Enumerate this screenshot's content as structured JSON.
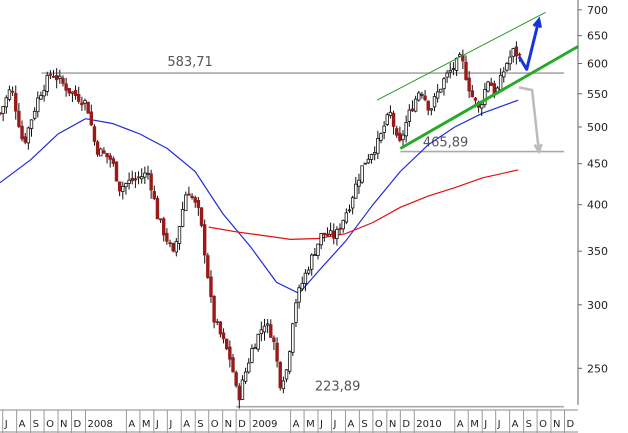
{
  "chart_data": {
    "type": "candlestick",
    "title": "",
    "y_scale": "log",
    "ylim": [
      225,
      720
    ],
    "y_ticks": [
      250,
      300,
      350,
      400,
      450,
      500,
      550,
      600,
      650,
      700
    ],
    "x_range": [
      "2007-06-25",
      "2010-12-31"
    ],
    "x_tick_labels": [
      {
        "label": "J",
        "date": "2007-07-01"
      },
      {
        "label": "A",
        "date": "2007-08-01"
      },
      {
        "label": "S",
        "date": "2007-09-01"
      },
      {
        "label": "O",
        "date": "2007-10-01"
      },
      {
        "label": "N",
        "date": "2007-11-01"
      },
      {
        "label": "D",
        "date": "2007-12-01"
      },
      {
        "label": "2008",
        "date": "2008-01-01"
      },
      {
        "label": "A",
        "date": "2008-04-01"
      },
      {
        "label": "M",
        "date": "2008-05-01"
      },
      {
        "label": "J",
        "date": "2008-06-01"
      },
      {
        "label": "J",
        "date": "2008-07-01"
      },
      {
        "label": "A",
        "date": "2008-08-01"
      },
      {
        "label": "S",
        "date": "2008-09-01"
      },
      {
        "label": "O",
        "date": "2008-10-01"
      },
      {
        "label": "N",
        "date": "2008-11-01"
      },
      {
        "label": "D",
        "date": "2008-12-01"
      },
      {
        "label": "2009",
        "date": "2009-01-01"
      },
      {
        "label": "A",
        "date": "2009-04-01"
      },
      {
        "label": "M",
        "date": "2009-05-01"
      },
      {
        "label": "J",
        "date": "2009-06-01"
      },
      {
        "label": "J",
        "date": "2009-07-01"
      },
      {
        "label": "A",
        "date": "2009-08-01"
      },
      {
        "label": "S",
        "date": "2009-09-01"
      },
      {
        "label": "O",
        "date": "2009-10-01"
      },
      {
        "label": "N",
        "date": "2009-11-01"
      },
      {
        "label": "D",
        "date": "2009-12-01"
      },
      {
        "label": "2010",
        "date": "2010-01-01"
      },
      {
        "label": "A",
        "date": "2010-04-01"
      },
      {
        "label": "M",
        "date": "2010-05-01"
      },
      {
        "label": "J",
        "date": "2010-06-01"
      },
      {
        "label": "J",
        "date": "2010-07-01"
      },
      {
        "label": "A",
        "date": "2010-08-01"
      },
      {
        "label": "S",
        "date": "2010-09-01"
      },
      {
        "label": "O",
        "date": "2010-10-01"
      },
      {
        "label": "N",
        "date": "2010-11-01"
      },
      {
        "label": "D",
        "date": "2010-12-01"
      }
    ],
    "price_path": [
      [
        "2007-06-25",
        520
      ],
      [
        "2007-07-20",
        560
      ],
      [
        "2007-08-16",
        475
      ],
      [
        "2007-09-20",
        548
      ],
      [
        "2007-10-18",
        585
      ],
      [
        "2007-11-26",
        555
      ],
      [
        "2008-01-04",
        535
      ],
      [
        "2008-01-24",
        470
      ],
      [
        "2008-02-28",
        455
      ],
      [
        "2008-03-17",
        420
      ],
      [
        "2008-04-10",
        428
      ],
      [
        "2008-05-20",
        438
      ],
      [
        "2008-06-10",
        385
      ],
      [
        "2008-07-15",
        345
      ],
      [
        "2008-08-14",
        420
      ],
      [
        "2008-09-10",
        390
      ],
      [
        "2008-10-10",
        290
      ],
      [
        "2008-11-20",
        255
      ],
      [
        "2008-12-05",
        228
      ],
      [
        "2009-01-06",
        265
      ],
      [
        "2009-02-02",
        285
      ],
      [
        "2009-02-20",
        275
      ],
      [
        "2009-03-09",
        240
      ],
      [
        "2009-03-25",
        250
      ],
      [
        "2009-04-10",
        300
      ],
      [
        "2009-05-15",
        340
      ],
      [
        "2009-06-10",
        368
      ],
      [
        "2009-07-10",
        365
      ],
      [
        "2009-08-10",
        400
      ],
      [
        "2009-09-10",
        450
      ],
      [
        "2009-10-15",
        480
      ],
      [
        "2009-10-28",
        505
      ],
      [
        "2009-11-10",
        520
      ],
      [
        "2009-11-27",
        470
      ],
      [
        "2009-12-20",
        518
      ],
      [
        "2010-01-15",
        560
      ],
      [
        "2010-02-05",
        525
      ],
      [
        "2010-03-10",
        575
      ],
      [
        "2010-04-15",
        610
      ],
      [
        "2010-05-07",
        550
      ],
      [
        "2010-05-25",
        525
      ],
      [
        "2010-06-15",
        575
      ],
      [
        "2010-07-01",
        548
      ],
      [
        "2010-07-25",
        600
      ],
      [
        "2010-08-10",
        622
      ],
      [
        "2010-08-25",
        610
      ]
    ],
    "series": [
      {
        "type": "line",
        "color": "#1f2bd6",
        "points": [
          [
            "2007-06-25",
            426
          ],
          [
            "2007-09-01",
            455
          ],
          [
            "2007-11-01",
            490
          ],
          [
            "2008-01-01",
            512
          ],
          [
            "2008-03-01",
            505
          ],
          [
            "2008-05-01",
            490
          ],
          [
            "2008-07-01",
            470
          ],
          [
            "2008-09-01",
            440
          ],
          [
            "2008-11-01",
            390
          ],
          [
            "2009-01-01",
            355
          ],
          [
            "2009-03-01",
            320
          ],
          [
            "2009-04-20",
            310
          ],
          [
            "2009-06-01",
            330
          ],
          [
            "2009-08-01",
            360
          ],
          [
            "2009-10-01",
            400
          ],
          [
            "2009-12-01",
            440
          ],
          [
            "2010-02-01",
            475
          ],
          [
            "2010-04-01",
            500
          ],
          [
            "2010-06-01",
            520
          ],
          [
            "2010-08-20",
            540
          ]
        ]
      },
      {
        "type": "line",
        "color": "#dd1111",
        "points": [
          [
            "2008-10-01",
            375
          ],
          [
            "2008-12-01",
            370
          ],
          [
            "2009-02-01",
            366
          ],
          [
            "2009-04-01",
            362
          ],
          [
            "2009-06-01",
            363
          ],
          [
            "2009-08-01",
            368
          ],
          [
            "2009-10-01",
            380
          ],
          [
            "2009-12-01",
            397
          ],
          [
            "2010-02-01",
            410
          ],
          [
            "2010-04-01",
            420
          ],
          [
            "2010-06-01",
            432
          ],
          [
            "2010-08-20",
            442
          ]
        ]
      }
    ],
    "levels": [
      {
        "label": "583,71",
        "value": 583.71,
        "color": "#aaaaaa",
        "from": "2007-09-25",
        "to": "2010-11-30"
      },
      {
        "label": "465,89",
        "value": 465.89,
        "color": "#aaaaaa",
        "from": "2009-12-01",
        "to": "2010-11-30"
      },
      {
        "label": "223,89",
        "value": 223.89,
        "color": "#aaaaaa",
        "from": "2008-12-01",
        "to": "2010-11-30"
      }
    ],
    "channel": [
      {
        "color": "#2a9a2a",
        "width": 1,
        "points": [
          [
            "2009-10-10",
            540
          ],
          [
            "2010-10-20",
            695
          ]
        ]
      },
      {
        "color": "#2aa82a",
        "width": 3,
        "points": [
          [
            "2009-12-01",
            470
          ],
          [
            "2010-12-31",
            630
          ]
        ]
      }
    ],
    "scenarios": [
      {
        "color": "#1634dd",
        "points": [
          [
            "2010-08-22",
            612
          ],
          [
            "2010-09-08",
            590
          ],
          [
            "2010-10-05",
            680
          ]
        ]
      },
      {
        "color": "#bbbbbb",
        "points": [
          [
            "2010-08-22",
            560
          ],
          [
            "2010-09-20",
            556
          ],
          [
            "2010-10-05",
            466
          ]
        ]
      }
    ]
  }
}
